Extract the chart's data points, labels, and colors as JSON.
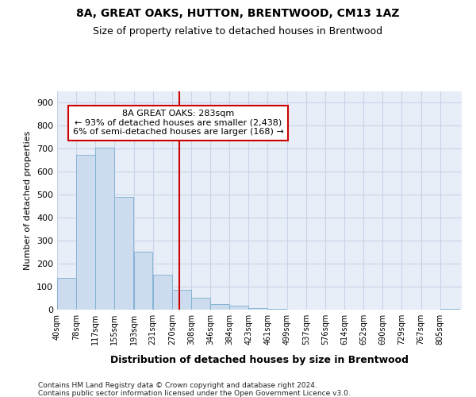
{
  "title1": "8A, GREAT OAKS, HUTTON, BRENTWOOD, CM13 1AZ",
  "title2": "Size of property relative to detached houses in Brentwood",
  "xlabel": "Distribution of detached houses by size in Brentwood",
  "ylabel": "Number of detached properties",
  "footnote1": "Contains HM Land Registry data © Crown copyright and database right 2024.",
  "footnote2": "Contains public sector information licensed under the Open Government Licence v3.0.",
  "bin_labels": [
    "40sqm",
    "78sqm",
    "117sqm",
    "155sqm",
    "193sqm",
    "231sqm",
    "270sqm",
    "308sqm",
    "346sqm",
    "384sqm",
    "423sqm",
    "461sqm",
    "499sqm",
    "537sqm",
    "576sqm",
    "614sqm",
    "652sqm",
    "690sqm",
    "729sqm",
    "767sqm",
    "805sqm"
  ],
  "bar_values": [
    137,
    675,
    705,
    492,
    251,
    153,
    85,
    53,
    25,
    18,
    8,
    5,
    1,
    0,
    0,
    0,
    0,
    0,
    0,
    0,
    4
  ],
  "bar_color": "#ccdcee",
  "bar_edge_color": "#7aaed0",
  "subject_sqm": 283,
  "subject_label": "8A GREAT OAKS: 283sqm",
  "annotation_line1": "← 93% of detached houses are smaller (2,438)",
  "annotation_line2": "6% of semi-detached houses are larger (168) →",
  "vline_color": "#cc0000",
  "annotation_box_edgecolor": "#cc0000",
  "ylim": [
    0,
    950
  ],
  "yticks": [
    0,
    100,
    200,
    300,
    400,
    500,
    600,
    700,
    800,
    900
  ],
  "grid_color": "#c8d4e8",
  "background_color": "#e8eef8"
}
